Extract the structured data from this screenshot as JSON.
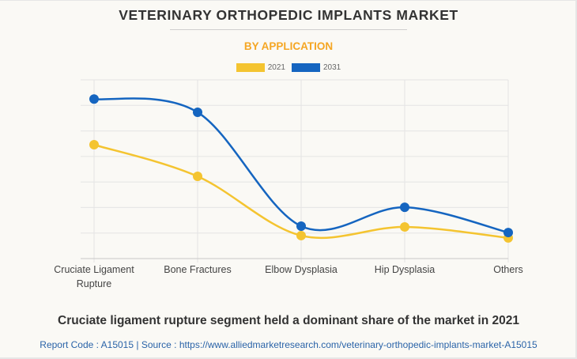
{
  "chart_data": {
    "type": "line",
    "title": "VETERINARY ORTHOPEDIC IMPLANTS MARKET",
    "subtitle": "BY APPLICATION",
    "xlabel": "",
    "ylabel": "",
    "categories": [
      "Cruciate Ligament Rupture",
      "Bone Fractures",
      "Elbow Dysplasia",
      "Hip Dysplasia",
      "Others"
    ],
    "category_lines": [
      [
        "Cruciate Ligament",
        "Rupture"
      ],
      [
        "Bone Fractures"
      ],
      [
        "Elbow Dysplasia"
      ],
      [
        "Hip Dysplasia"
      ],
      [
        "Others"
      ]
    ],
    "series": [
      {
        "name": "2021",
        "color": "#f4c430",
        "values": [
          4.46,
          3.22,
          0.9,
          1.24,
          0.81
        ]
      },
      {
        "name": "2031",
        "color": "#1565c0",
        "values": [
          6.25,
          5.73,
          1.27,
          2.01,
          1.02
        ]
      }
    ],
    "ylim": [
      0,
      7
    ],
    "y_gridlines": 7,
    "y_tick_labels_visible": false,
    "grid": true,
    "smooth": true,
    "legend_position": "top-center"
  },
  "colors": {
    "title": "#333333",
    "subtitle": "#f5a623",
    "grid": "#e4e4e4",
    "axis": "#c8c8c8",
    "source": "#2a63a8"
  },
  "footer": {
    "headline": "Cruciate ligament rupture segment held a dominant share of the market in 2021",
    "source": "Report Code : A15015  |  Source : https://www.alliedmarketresearch.com/veterinary-orthopedic-implants-market-A15015"
  }
}
